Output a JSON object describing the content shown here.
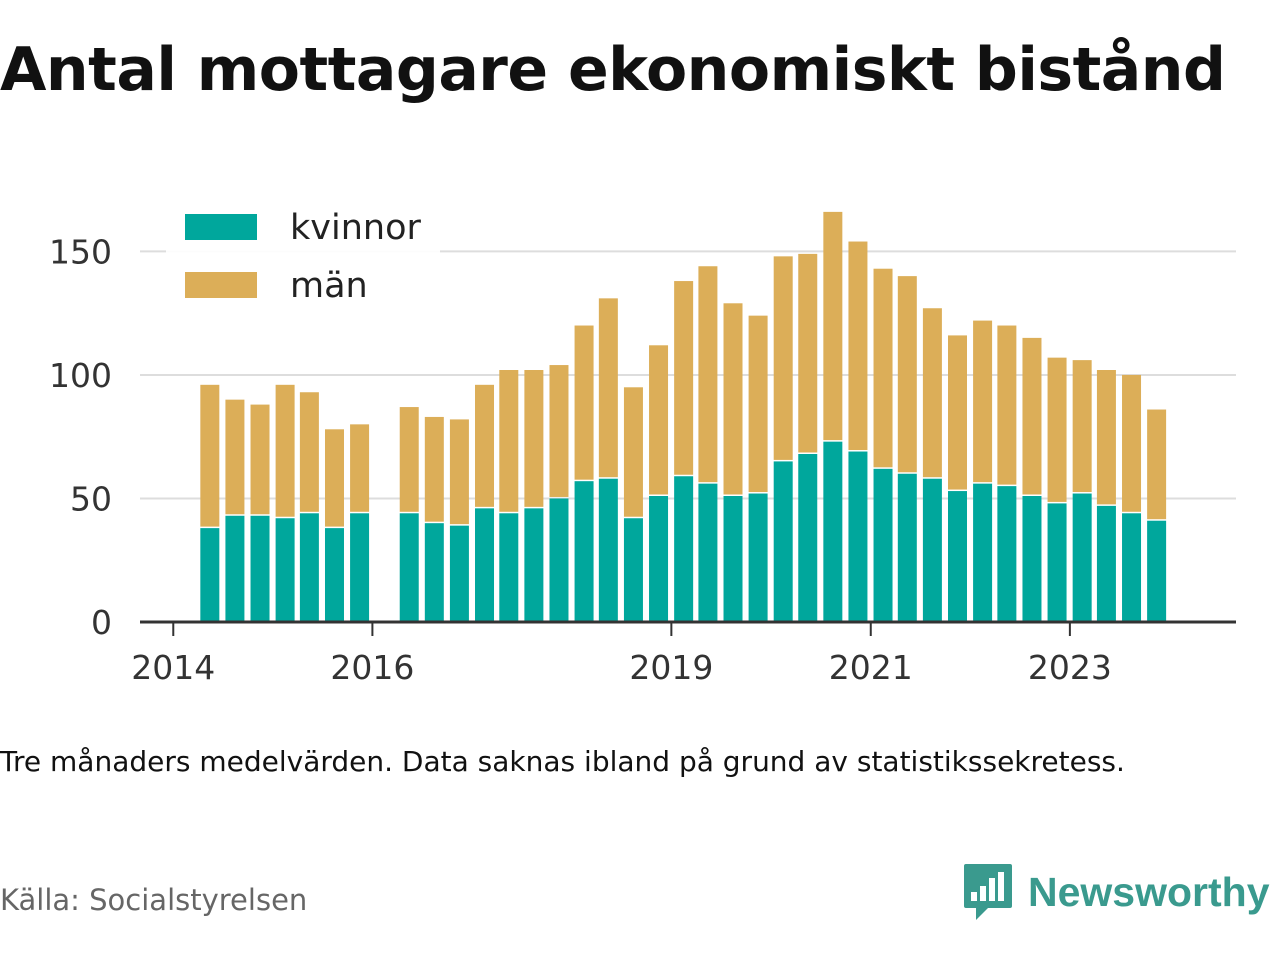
{
  "title": "Antal mottagare ekonomiskt bistånd",
  "note": "Tre månaders medelvärden. Data saknas ibland på grund av statistikssekretess.",
  "source": "Källa: Socialstyrelsen",
  "brand": {
    "name": "Newsworthy",
    "icon": "newsworthy-logo-icon",
    "color": "#3a9a8e"
  },
  "colors": {
    "kvinnor": "#00a79c",
    "man": "#dcae58",
    "grid": "#dddddd",
    "axis": "#333333"
  },
  "chart_data": {
    "type": "bar",
    "stacked": true,
    "x_type": "date",
    "xlim": [
      "2013-09-01",
      "2024-09-01"
    ],
    "ylim": [
      0,
      170
    ],
    "yticks": [
      0,
      50,
      100,
      150
    ],
    "xticks": [
      {
        "date": "2014-01-01",
        "label": "2014"
      },
      {
        "date": "2016-01-01",
        "label": "2016"
      },
      {
        "date": "2019-01-01",
        "label": "2019"
      },
      {
        "date": "2021-01-01",
        "label": "2021"
      },
      {
        "date": "2023-01-01",
        "label": "2023"
      }
    ],
    "grid": true,
    "legend": "top-left",
    "x": [
      "2014-05-15",
      "2014-08-15",
      "2014-11-15",
      "2015-02-15",
      "2015-05-15",
      "2015-08-15",
      "2015-11-15",
      "2016-05-15",
      "2016-08-15",
      "2016-11-15",
      "2017-02-15",
      "2017-05-15",
      "2017-08-15",
      "2017-11-15",
      "2018-02-15",
      "2018-05-15",
      "2018-08-15",
      "2018-11-15",
      "2019-02-15",
      "2019-05-15",
      "2019-08-15",
      "2019-11-15",
      "2020-02-15",
      "2020-05-15",
      "2020-08-15",
      "2020-11-15",
      "2021-02-15",
      "2021-05-15",
      "2021-08-15",
      "2021-11-15",
      "2022-02-15",
      "2022-05-15",
      "2022-08-15",
      "2022-11-15",
      "2023-02-15",
      "2023-05-15",
      "2023-08-15",
      "2023-11-15",
      "2024-02-15"
    ],
    "series": [
      {
        "name": "kvinnor",
        "values": [
          38,
          43,
          43,
          42,
          44,
          38,
          44,
          44,
          40,
          39,
          46,
          44,
          46,
          50,
          57,
          58,
          42,
          51,
          59,
          56,
          51,
          52,
          65,
          68,
          73,
          69,
          62,
          60,
          58,
          53,
          56,
          55,
          51,
          48,
          52,
          47,
          44,
          41,
          0
        ]
      },
      {
        "name": "män",
        "values": [
          58,
          47,
          45,
          54,
          49,
          40,
          36,
          43,
          43,
          43,
          50,
          58,
          56,
          54,
          63,
          73,
          53,
          61,
          79,
          88,
          78,
          72,
          83,
          81,
          93,
          85,
          81,
          80,
          69,
          63,
          66,
          65,
          64,
          59,
          54,
          55,
          56,
          45,
          0
        ]
      }
    ]
  }
}
